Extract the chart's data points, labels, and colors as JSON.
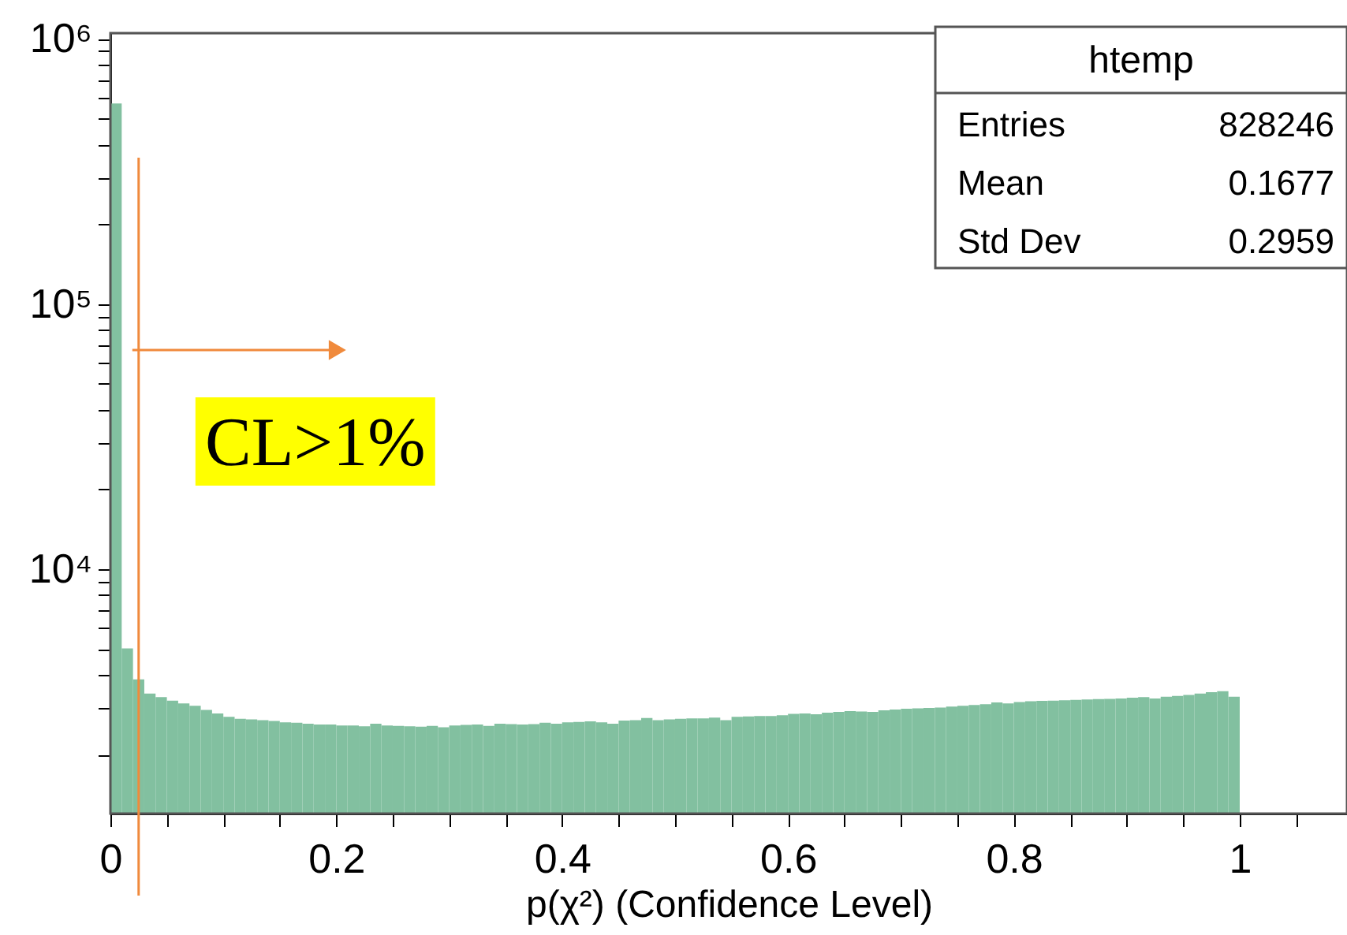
{
  "chart_data": {
    "type": "histogram",
    "xlabel": "p(χ²) (Confidence Level)",
    "bins": [
      0,
      0.01,
      0.02,
      0.03,
      0.04,
      0.05,
      0.06,
      0.07,
      0.08,
      0.09,
      0.1,
      0.11,
      0.12,
      0.13,
      0.14,
      0.15,
      0.16,
      0.17,
      0.18,
      0.19,
      0.2,
      0.21,
      0.22,
      0.23,
      0.24,
      0.25,
      0.26,
      0.27,
      0.28,
      0.29,
      0.3,
      0.31,
      0.32,
      0.33,
      0.34,
      0.35,
      0.36,
      0.37,
      0.38,
      0.39,
      0.4,
      0.41,
      0.42,
      0.43,
      0.44,
      0.45,
      0.46,
      0.47,
      0.48,
      0.49,
      0.5,
      0.51,
      0.52,
      0.53,
      0.54,
      0.55,
      0.56,
      0.57,
      0.58,
      0.59,
      0.6,
      0.61,
      0.62,
      0.63,
      0.64,
      0.65,
      0.66,
      0.67,
      0.68,
      0.69,
      0.7,
      0.71,
      0.72,
      0.73,
      0.74,
      0.75,
      0.76,
      0.77,
      0.78,
      0.79,
      0.8,
      0.81,
      0.82,
      0.83,
      0.84,
      0.85,
      0.86,
      0.87,
      0.88,
      0.89,
      0.9,
      0.91,
      0.92,
      0.93,
      0.94,
      0.95,
      0.96,
      0.97,
      0.98,
      0.99,
      1.0
    ],
    "values": [
      570000,
      5030,
      3850,
      3400,
      3300,
      3200,
      3120,
      3060,
      2950,
      2860,
      2780,
      2730,
      2720,
      2700,
      2680,
      2650,
      2640,
      2620,
      2600,
      2600,
      2580,
      2580,
      2560,
      2620,
      2580,
      2570,
      2560,
      2550,
      2570,
      2540,
      2580,
      2590,
      2600,
      2570,
      2620,
      2610,
      2600,
      2610,
      2640,
      2620,
      2650,
      2660,
      2670,
      2650,
      2620,
      2690,
      2700,
      2750,
      2700,
      2720,
      2730,
      2740,
      2740,
      2760,
      2700,
      2780,
      2790,
      2800,
      2800,
      2820,
      2850,
      2860,
      2840,
      2880,
      2900,
      2920,
      2910,
      2900,
      2940,
      2960,
      2980,
      2990,
      3000,
      3010,
      3040,
      3060,
      3080,
      3100,
      3150,
      3120,
      3160,
      3180,
      3190,
      3200,
      3210,
      3220,
      3230,
      3240,
      3250,
      3260,
      3280,
      3300,
      3260,
      3310,
      3330,
      3360,
      3400,
      3440,
      3470,
      3310
    ],
    "color": "#82c0a0",
    "log": true,
    "xlim": [
      0,
      1.095
    ],
    "ylim": [
      1200,
      1050000
    ],
    "xticks": [
      0,
      {
        "value": 0.05,
        "label": null
      },
      {
        "value": 0.1,
        "label": null
      },
      {
        "value": 0.15,
        "label": null
      },
      0.2,
      {
        "value": 0.25,
        "label": null
      },
      {
        "value": 0.3,
        "label": null
      },
      {
        "value": 0.35,
        "label": null
      },
      0.4,
      {
        "value": 0.45,
        "label": null
      },
      {
        "value": 0.5,
        "label": null
      },
      {
        "value": 0.55,
        "label": null
      },
      0.6,
      {
        "value": 0.65,
        "label": null
      },
      {
        "value": 0.7,
        "label": null
      },
      {
        "value": 0.75,
        "label": null
      },
      0.8,
      {
        "value": 0.85,
        "label": null
      },
      {
        "value": 0.9,
        "label": null
      },
      {
        "value": 0.95,
        "label": null
      },
      1,
      {
        "value": 1.05,
        "label": null
      }
    ],
    "yticks": [
      {
        "value": 2000,
        "label": null
      },
      {
        "value": 3000,
        "label": null
      },
      {
        "value": 4000,
        "label": null
      },
      {
        "value": 5000,
        "label": null
      },
      {
        "value": 6000,
        "label": null
      },
      {
        "value": 7000,
        "label": null
      },
      {
        "value": 8000,
        "label": null
      },
      {
        "value": 9000,
        "label": null
      },
      {
        "value": 10000,
        "label": "10⁴"
      },
      {
        "value": 20000,
        "label": null
      },
      {
        "value": 30000,
        "label": null
      },
      {
        "value": 40000,
        "label": null
      },
      {
        "value": 50000,
        "label": null
      },
      {
        "value": 60000,
        "label": null
      },
      {
        "value": 70000,
        "label": null
      },
      {
        "value": 80000,
        "label": null
      },
      {
        "value": 90000,
        "label": null
      },
      {
        "value": 100000,
        "label": "10⁵"
      },
      {
        "value": 200000,
        "label": null
      },
      {
        "value": 300000,
        "label": null
      },
      {
        "value": 400000,
        "label": null
      },
      {
        "value": 500000,
        "label": null
      },
      {
        "value": 600000,
        "label": null
      },
      {
        "value": 700000,
        "label": null
      },
      {
        "value": 800000,
        "label": null
      },
      {
        "value": 900000,
        "label": null
      },
      {
        "value": 1000000,
        "label": "10⁶"
      }
    ],
    "grid": false,
    "ref_lines": [
      {
        "axis": "x",
        "value": 0.025,
        "label": "CL>1%",
        "color": "#f08a3c"
      }
    ],
    "annotations": [
      "htemp",
      "Entries",
      "828246",
      "Mean",
      "0.1677",
      "Std Dev",
      "0.2959"
    ]
  }
}
